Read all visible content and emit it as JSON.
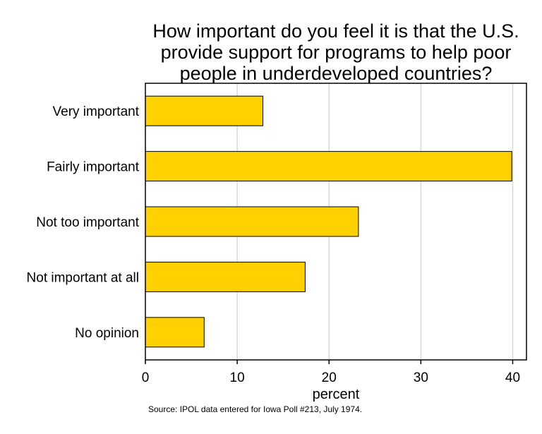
{
  "chart_data": {
    "type": "bar",
    "orientation": "horizontal",
    "title_lines": [
      "How important do you feel it is that the U.S.",
      "provide support for programs to help poor",
      "people in underdeveloped countries?"
    ],
    "categories": [
      "Very important",
      "Fairly important",
      "Not too important",
      "Not important at all",
      "No opinion"
    ],
    "values": [
      12.8,
      39.9,
      23.2,
      17.4,
      6.4
    ],
    "xlabel": "percent",
    "xlim": [
      0,
      41.5
    ],
    "xticks": [
      0,
      10,
      20,
      30,
      40
    ],
    "grid": true,
    "bar_color": "#FFD100",
    "note": "Source: IPOL data entered for Iowa Poll #213, July 1974."
  }
}
